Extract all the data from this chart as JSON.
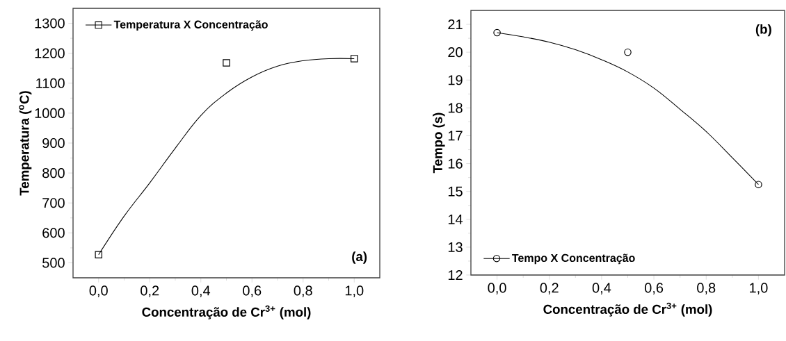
{
  "chart_data": [
    {
      "type": "scatter",
      "xlabel": "Concentração de Cr$^{3+}$ (mol)",
      "ylabel": "Temperatura ($^{o}$C)",
      "annotations": [
        "(a)"
      ],
      "series": [
        {
          "name": "Temperatura X Concentração",
          "marker": "square",
          "color": "#000000",
          "x": [
            0,
            0.5,
            1
          ],
          "values": [
            527,
            1168,
            1182
          ]
        },
        {
          "type": "line",
          "color": "#000000",
          "x": [
            0,
            0.1,
            0.2,
            0.3,
            0.4,
            0.5,
            0.6,
            0.7,
            0.8,
            0.9,
            1
          ],
          "values": [
            527,
            656,
            767,
            883,
            992,
            1067,
            1121,
            1157,
            1175,
            1182,
            1182
          ]
        }
      ],
      "xlim": [
        -0.1,
        1.1
      ],
      "ylim": [
        450,
        1350
      ],
      "xticks": [
        {
          "value": 0,
          "label": "0,0"
        },
        {
          "value": 0.2,
          "label": "0,2"
        },
        {
          "value": 0.4,
          "label": "0,4"
        },
        {
          "value": 0.6,
          "label": "0,6"
        },
        {
          "value": 0.8,
          "label": "0,8"
        },
        {
          "value": 1,
          "label": "1,0"
        }
      ],
      "yticks": [
        500,
        600,
        700,
        800,
        900,
        1000,
        1100,
        1200,
        1300
      ],
      "legend": "top left"
    },
    {
      "type": "scatter",
      "xlabel": "Concentração de Cr$^{3+}$ (mol)",
      "ylabel": "Tempo (s)",
      "annotations": [
        "(b)"
      ],
      "series": [
        {
          "name": "Tempo X Concentração",
          "marker": "circle",
          "color": "#000000",
          "x": [
            0,
            0.5,
            1
          ],
          "values": [
            20.7,
            20.0,
            15.25
          ]
        },
        {
          "type": "line",
          "color": "#000000",
          "x": [
            0,
            0.1,
            0.2,
            0.3,
            0.4,
            0.5,
            0.6,
            0.7,
            0.8,
            0.9,
            1
          ],
          "values": [
            20.7,
            20.55,
            20.36,
            20.09,
            19.73,
            19.29,
            18.71,
            17.95,
            17.15,
            16.21,
            15.25
          ]
        }
      ],
      "xlim": [
        -0.1,
        1.1
      ],
      "ylim": [
        12,
        21.5
      ],
      "xticks": [
        {
          "value": 0,
          "label": "0,0"
        },
        {
          "value": 0.2,
          "label": "0,2"
        },
        {
          "value": 0.4,
          "label": "0,4"
        },
        {
          "value": 0.6,
          "label": "0,6"
        },
        {
          "value": 0.8,
          "label": "0,8"
        },
        {
          "value": 1,
          "label": "1,0"
        }
      ],
      "yticks": [
        12,
        13,
        14,
        15,
        16,
        17,
        18,
        19,
        20,
        21
      ],
      "legend": "bottom left"
    }
  ]
}
